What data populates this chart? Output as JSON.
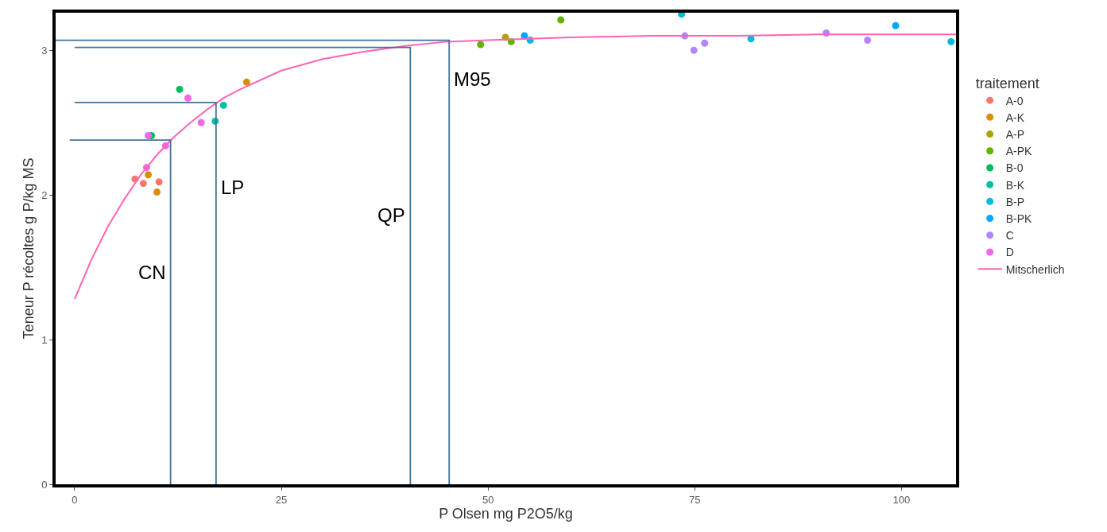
{
  "chart_data": {
    "type": "scatter",
    "xlabel": "P Olsen mg P2O5/kg",
    "ylabel": "Teneur P récoltes g P/kg MS",
    "legend_title": "traitement",
    "legend": "right",
    "xlim": [
      -2.3,
      106.6
    ],
    "ylim": [
      0,
      3.26
    ],
    "xticks": [
      0,
      25,
      50,
      75,
      100
    ],
    "yticks": [
      0,
      1,
      2,
      3
    ],
    "series": [
      {
        "name": "A-0",
        "color": "#f8766d",
        "x": [
          7.3,
          8.3,
          10.2
        ],
        "values": [
          2.11,
          2.08,
          2.09
        ]
      },
      {
        "name": "A-K",
        "color": "#db8e00",
        "x": [
          8.9,
          9.96,
          20.8
        ],
        "values": [
          2.14,
          2.02,
          2.78
        ]
      },
      {
        "name": "A-P",
        "color": "#aea200",
        "x": [
          52.1
        ],
        "values": [
          3.09
        ]
      },
      {
        "name": "A-PK",
        "color": "#64b200",
        "x": [
          49.1,
          52.8,
          58.8
        ],
        "values": [
          3.04,
          3.06,
          3.21
        ]
      },
      {
        "name": "B-0",
        "color": "#00bd5c",
        "x": [
          12.7,
          9.3
        ],
        "values": [
          2.73,
          2.41
        ]
      },
      {
        "name": "B-K",
        "color": "#00c1a7",
        "x": [
          18.0,
          17.0
        ],
        "values": [
          2.62,
          2.51
        ]
      },
      {
        "name": "B-P",
        "color": "#00bade",
        "x": [
          55.1,
          81.8,
          73.4,
          106.0
        ],
        "values": [
          3.07,
          3.08,
          3.25,
          3.06
        ]
      },
      {
        "name": "B-PK",
        "color": "#00a6ff",
        "x": [
          54.4,
          99.3
        ],
        "values": [
          3.1,
          3.17
        ]
      },
      {
        "name": "C",
        "color": "#b385ff",
        "x": [
          73.8,
          74.9,
          76.2,
          90.9,
          95.9
        ],
        "values": [
          3.1,
          3.0,
          3.05,
          3.12,
          3.07
        ]
      },
      {
        "name": "D",
        "color": "#ef67eb",
        "x": [
          13.7,
          15.3,
          11.0,
          8.7,
          8.9
        ],
        "values": [
          2.67,
          2.5,
          2.34,
          2.19,
          2.41
        ]
      },
      {
        "name": "Mitscherlich",
        "type": "line",
        "color": "#ff63b6",
        "x": [
          0,
          2,
          4,
          6,
          8,
          10,
          12,
          14,
          16,
          18,
          20,
          25,
          30,
          35,
          40,
          45,
          50,
          60,
          70,
          80,
          90,
          100,
          106.6
        ],
        "values": [
          1.28,
          1.55,
          1.78,
          1.97,
          2.14,
          2.28,
          2.4,
          2.5,
          2.59,
          2.67,
          2.73,
          2.86,
          2.94,
          2.99,
          3.03,
          3.06,
          3.07,
          3.09,
          3.1,
          3.1,
          3.11,
          3.11,
          3.11
        ]
      },
      {
        "name": "CN",
        "type": "line",
        "color": "#41719c",
        "x": [
          -0.6,
          11.6,
          11.6
        ],
        "values": [
          2.38,
          2.38,
          0
        ]
      },
      {
        "name": "LP",
        "type": "line",
        "color": "#41719c",
        "x": [
          0,
          17.1,
          17.1
        ],
        "values": [
          2.64,
          2.64,
          0
        ]
      },
      {
        "name": "QP",
        "type": "line",
        "color": "#41719c",
        "x": [
          0,
          40.6,
          40.6
        ],
        "values": [
          3.02,
          3.02,
          0
        ]
      },
      {
        "name": "M95",
        "type": "line",
        "color": "#41719c",
        "x": [
          -2.3,
          45.3,
          45.3
        ],
        "values": [
          3.07,
          3.07,
          0
        ]
      }
    ]
  }
}
